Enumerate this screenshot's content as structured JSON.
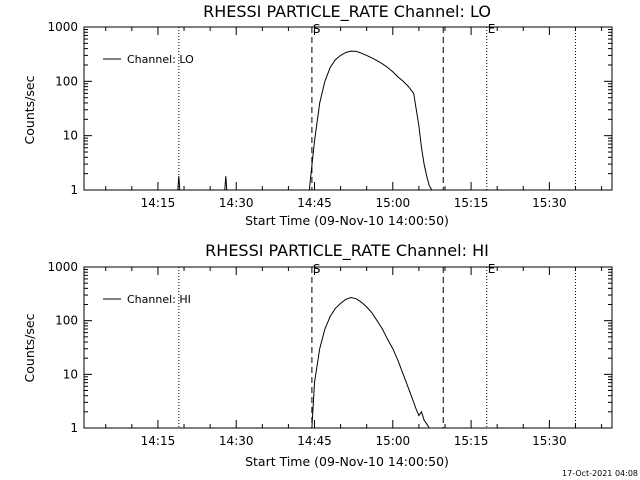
{
  "footer": "17-Oct-2021 04:08",
  "chart_data": [
    {
      "type": "line",
      "title": "RHESSI PARTICLE_RATE Channel: LO",
      "xlabel": "Start Time (09-Nov-10 14:00:50)",
      "ylabel": "Counts/sec",
      "y_scale": "log",
      "ylim": [
        1,
        1000
      ],
      "xlim": [
        "14:00:50",
        "15:42:00"
      ],
      "x_ticks": [
        "14:15",
        "14:30",
        "14:45",
        "15:00",
        "15:15",
        "15:30"
      ],
      "y_ticks": [
        "1",
        "10",
        "100",
        "1000"
      ],
      "legend": {
        "entries": [
          "Channel: LO"
        ],
        "placement": "top-left"
      },
      "markers": [
        {
          "label": "",
          "time": "14:19:00",
          "style": "dotted"
        },
        {
          "label": "S",
          "time": "14:44:30",
          "style": "dashed"
        },
        {
          "label": "",
          "time": "15:09:40",
          "style": "dashed"
        },
        {
          "label": "E",
          "time": "15:18:00",
          "style": "dotted"
        },
        {
          "label": "",
          "time": "15:35:00",
          "style": "dotted"
        }
      ],
      "series": [
        {
          "name": "Channel: LO",
          "spikes": [
            {
              "time": "14:19:00",
              "peak": 1.8
            },
            {
              "time": "14:28:00",
              "peak": 1.8
            }
          ],
          "x": [
            "14:44:00",
            "14:45:00",
            "14:46:00",
            "14:47:00",
            "14:48:00",
            "14:49:00",
            "14:50:00",
            "14:51:00",
            "14:52:00",
            "14:53:00",
            "14:54:00",
            "14:55:00",
            "14:56:00",
            "14:57:00",
            "14:58:00",
            "14:59:00",
            "15:00:00",
            "15:01:00",
            "15:02:00",
            "15:03:00",
            "15:04:00",
            "15:05:00",
            "15:05:30",
            "15:06:00",
            "15:06:30",
            "15:07:00",
            "15:07:30"
          ],
          "values": [
            1,
            8,
            40,
            100,
            180,
            250,
            300,
            340,
            360,
            355,
            330,
            300,
            270,
            240,
            210,
            180,
            150,
            120,
            100,
            80,
            60,
            15,
            6,
            3,
            1.8,
            1.2,
            1
          ]
        }
      ]
    },
    {
      "type": "line",
      "title": "RHESSI PARTICLE_RATE Channel: HI",
      "xlabel": "Start Time (09-Nov-10 14:00:50)",
      "ylabel": "Counts/sec",
      "y_scale": "log",
      "ylim": [
        1,
        1000
      ],
      "xlim": [
        "14:00:50",
        "15:42:00"
      ],
      "x_ticks": [
        "14:15",
        "14:30",
        "14:45",
        "15:00",
        "15:15",
        "15:30"
      ],
      "y_ticks": [
        "1",
        "10",
        "100",
        "1000"
      ],
      "legend": {
        "entries": [
          "Channel: HI"
        ],
        "placement": "top-left"
      },
      "markers": [
        {
          "label": "",
          "time": "14:19:00",
          "style": "dotted"
        },
        {
          "label": "S",
          "time": "14:44:30",
          "style": "dashed"
        },
        {
          "label": "",
          "time": "15:09:40",
          "style": "dashed"
        },
        {
          "label": "E",
          "time": "15:18:00",
          "style": "dotted"
        },
        {
          "label": "",
          "time": "15:35:00",
          "style": "dotted"
        }
      ],
      "series": [
        {
          "name": "Channel: HI",
          "x": [
            "14:44:30",
            "14:45:00",
            "14:46:00",
            "14:47:00",
            "14:48:00",
            "14:49:00",
            "14:50:00",
            "14:51:00",
            "14:52:00",
            "14:53:00",
            "14:54:00",
            "14:55:00",
            "14:56:00",
            "14:57:00",
            "14:58:00",
            "14:59:00",
            "15:00:00",
            "15:01:00",
            "15:02:00",
            "15:03:00",
            "15:04:00",
            "15:04:30",
            "15:05:00",
            "15:05:30",
            "15:06:00",
            "15:06:30",
            "15:07:00"
          ],
          "values": [
            1,
            7,
            30,
            70,
            120,
            170,
            210,
            250,
            270,
            255,
            220,
            180,
            140,
            100,
            70,
            45,
            30,
            18,
            10,
            5.5,
            3,
            2.2,
            1.7,
            2,
            1.4,
            1.2,
            1
          ]
        }
      ]
    }
  ]
}
